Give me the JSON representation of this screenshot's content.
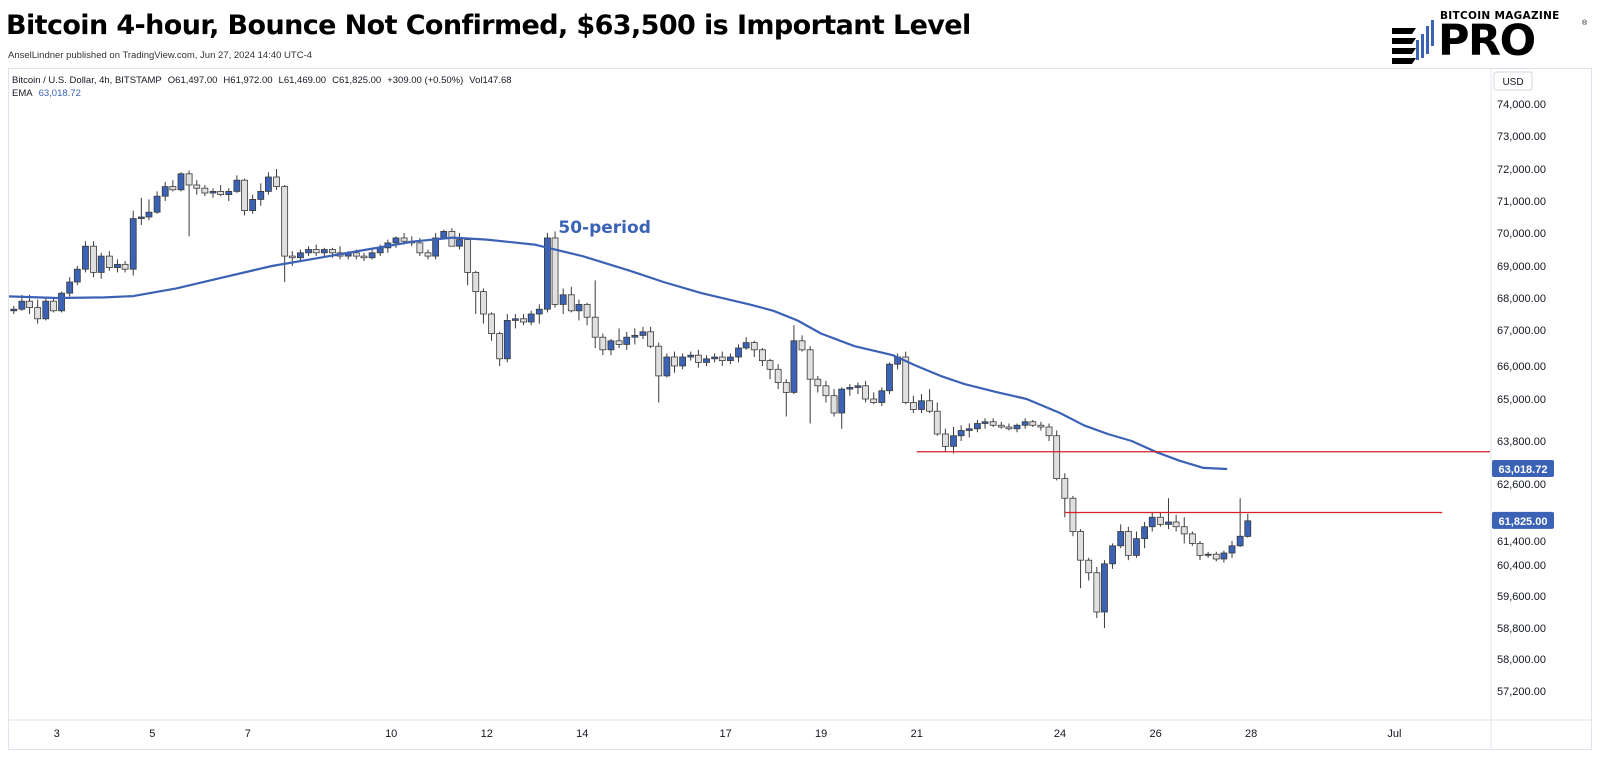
{
  "header": {
    "title": "Bitcoin 4-hour, Bounce Not Confirmed, $63,500 is Important Level",
    "byline": "AnselLindner published on TradingView.com, Jun 27, 2024 14:40 UTC-4"
  },
  "logo": {
    "kicker": "BITCOIN MAGAZINE",
    "word": "PRO",
    "reg": "®"
  },
  "legend": {
    "symbol": "Bitcoin / U.S. Dollar, 4h, BITSTAMP",
    "open": "O61,497.00",
    "high": "H61,972.00",
    "low": "L61,469.00",
    "close": "C61,825.00",
    "change": "+309.00 (+0.50%)",
    "volume": "Vol147.68",
    "ema_label": "EMA",
    "ema_value": "63,018.72"
  },
  "chart_data": {
    "type": "candlestick",
    "title": "Bitcoin 4-hour, Bounce Not Confirmed, $63,500 is Important Level",
    "currency": "USD",
    "ylim": [
      56600,
      74900
    ],
    "y_scale": "nonlinear",
    "y_tick_labels": [
      "74,000.00",
      "73,000.00",
      "72,000.00",
      "71,000.00",
      "70,000.00",
      "69,000.00",
      "68,000.00",
      "67,000.00",
      "66,000.00",
      "65,000.00",
      "63,800.00",
      "62,600.00",
      "61,400.00",
      "60,400.00",
      "59,600.00",
      "58,800.00",
      "58,000.00",
      "57,200.00"
    ],
    "y_tick_values": [
      74000,
      73000,
      72000,
      71000,
      70000,
      69000,
      68000,
      67000,
      66000,
      65000,
      63800,
      62600,
      61400,
      60400,
      59600,
      58800,
      58000,
      57200
    ],
    "x_tick_labels": [
      "3",
      "5",
      "7",
      "10",
      "12",
      "14",
      "17",
      "19",
      "21",
      "24",
      "26",
      "28",
      "Jul"
    ],
    "x_tick_days": [
      3,
      5,
      7,
      10,
      12,
      14,
      17,
      19,
      21,
      24,
      26,
      28,
      31
    ],
    "x_range_days": [
      2.0,
      33.0
    ],
    "candle_colors": {
      "up": "#3b62b5",
      "down": "#e0e0e0",
      "outline": "#3a3a3a"
    },
    "candles": [
      [
        2.1,
        67600,
        67750,
        67500,
        67650
      ],
      [
        2.27,
        67650,
        68100,
        67600,
        67900
      ],
      [
        2.43,
        67900,
        68100,
        67500,
        67700
      ],
      [
        2.6,
        67700,
        67950,
        67200,
        67350
      ],
      [
        2.77,
        67350,
        68000,
        67300,
        67900
      ],
      [
        2.93,
        67900,
        68000,
        67550,
        67600
      ],
      [
        3.1,
        67600,
        68200,
        67550,
        68150
      ],
      [
        3.27,
        68150,
        68650,
        68050,
        68500
      ],
      [
        3.43,
        68500,
        69000,
        68400,
        68900
      ],
      [
        3.6,
        68900,
        69750,
        68800,
        69600
      ],
      [
        3.77,
        69600,
        69750,
        68650,
        68800
      ],
      [
        3.93,
        68800,
        69400,
        68600,
        69300
      ],
      [
        4.1,
        69300,
        69450,
        68850,
        68950
      ],
      [
        4.27,
        68950,
        69200,
        68800,
        69050
      ],
      [
        4.43,
        69050,
        69150,
        68800,
        68900
      ],
      [
        4.6,
        68900,
        70700,
        68700,
        70450
      ],
      [
        4.77,
        70450,
        71100,
        70250,
        70500
      ],
      [
        4.93,
        70500,
        71050,
        70400,
        70650
      ],
      [
        5.1,
        70650,
        71300,
        70600,
        71150
      ],
      [
        5.27,
        71150,
        71600,
        71000,
        71450
      ],
      [
        5.43,
        71450,
        71650,
        71300,
        71350
      ],
      [
        5.6,
        71350,
        71900,
        71300,
        71850
      ],
      [
        5.77,
        71850,
        71950,
        69900,
        71500
      ],
      [
        5.93,
        71500,
        71650,
        71200,
        71400
      ],
      [
        6.1,
        71400,
        71500,
        71150,
        71250
      ],
      [
        6.27,
        71250,
        71400,
        71100,
        71300
      ],
      [
        6.43,
        71300,
        71500,
        71150,
        71200
      ],
      [
        6.6,
        71200,
        71400,
        71000,
        71300
      ],
      [
        6.77,
        71300,
        71800,
        71250,
        71650
      ],
      [
        6.93,
        71650,
        71700,
        70550,
        70700
      ],
      [
        7.1,
        70700,
        71200,
        70600,
        71050
      ],
      [
        7.27,
        71050,
        71550,
        70850,
        71300
      ],
      [
        7.43,
        71300,
        71900,
        71200,
        71750
      ],
      [
        7.6,
        71750,
        72000,
        71350,
        71450
      ],
      [
        7.77,
        71450,
        71500,
        68500,
        69300
      ],
      [
        7.93,
        69300,
        69450,
        69000,
        69250
      ],
      [
        8.1,
        69250,
        69500,
        69150,
        69400
      ],
      [
        8.27,
        69400,
        69600,
        69300,
        69500
      ],
      [
        8.43,
        69500,
        69650,
        69300,
        69400
      ],
      [
        8.6,
        69400,
        69550,
        69250,
        69500
      ],
      [
        8.77,
        69500,
        69550,
        69250,
        69400
      ],
      [
        8.93,
        69400,
        69600,
        69200,
        69300
      ],
      [
        9.1,
        69300,
        69450,
        69200,
        69400
      ],
      [
        9.27,
        69400,
        69500,
        69200,
        69300
      ],
      [
        9.43,
        69300,
        69400,
        69150,
        69250
      ],
      [
        9.6,
        69250,
        69500,
        69200,
        69400
      ],
      [
        9.77,
        69400,
        69650,
        69300,
        69550
      ],
      [
        9.93,
        69550,
        69800,
        69400,
        69700
      ],
      [
        10.1,
        69700,
        69900,
        69550,
        69850
      ],
      [
        10.27,
        69850,
        70000,
        69650,
        69750
      ],
      [
        10.43,
        69750,
        69900,
        69600,
        69700
      ],
      [
        10.6,
        69700,
        69850,
        69300,
        69400
      ],
      [
        10.77,
        69400,
        69500,
        69200,
        69300
      ],
      [
        10.93,
        69300,
        70000,
        69200,
        69850
      ],
      [
        11.1,
        69850,
        70100,
        69900,
        70050
      ],
      [
        11.27,
        70050,
        70150,
        69600,
        69600
      ],
      [
        11.43,
        69600,
        70000,
        69500,
        69800
      ],
      [
        11.6,
        69800,
        69850,
        68400,
        68800
      ],
      [
        11.77,
        68800,
        68850,
        67500,
        68200
      ],
      [
        11.93,
        68200,
        68300,
        67200,
        67500
      ],
      [
        12.1,
        67500,
        67550,
        66700,
        66900
      ],
      [
        12.27,
        66900,
        66950,
        66000,
        66200
      ],
      [
        12.43,
        66200,
        67500,
        66100,
        67300
      ],
      [
        12.6,
        67300,
        67500,
        67050,
        67350
      ],
      [
        12.77,
        67350,
        67500,
        67150,
        67250
      ],
      [
        12.93,
        67250,
        67600,
        67150,
        67500
      ],
      [
        13.1,
        67500,
        67800,
        67200,
        67650
      ],
      [
        13.27,
        67650,
        70000,
        67550,
        69850
      ],
      [
        13.43,
        69850,
        70050,
        67700,
        67800
      ],
      [
        13.6,
        67800,
        68300,
        67500,
        68100
      ],
      [
        13.77,
        68100,
        68350,
        67550,
        67600
      ],
      [
        13.93,
        67600,
        67950,
        67300,
        67800
      ],
      [
        14.1,
        67800,
        67850,
        67150,
        67400
      ],
      [
        14.27,
        67400,
        68550,
        66500,
        66800
      ],
      [
        14.43,
        66800,
        66900,
        66300,
        66450
      ],
      [
        14.6,
        66450,
        66750,
        66300,
        66700
      ],
      [
        14.77,
        66700,
        67050,
        66500,
        66600
      ],
      [
        14.93,
        66600,
        66950,
        66450,
        66800
      ],
      [
        15.1,
        66800,
        67050,
        66600,
        66850
      ],
      [
        15.27,
        66850,
        67100,
        66750,
        66950
      ],
      [
        15.43,
        66950,
        67100,
        66500,
        66550
      ],
      [
        15.6,
        66550,
        66650,
        64900,
        65700
      ],
      [
        15.77,
        65700,
        66350,
        65650,
        66250
      ],
      [
        15.93,
        66250,
        66400,
        65800,
        66000
      ],
      [
        16.1,
        66000,
        66350,
        65900,
        66250
      ],
      [
        16.27,
        66250,
        66400,
        66150,
        66300
      ],
      [
        16.43,
        66300,
        66450,
        65950,
        66100
      ],
      [
        16.6,
        66100,
        66300,
        66000,
        66200
      ],
      [
        16.77,
        66200,
        66350,
        66100,
        66250
      ],
      [
        16.93,
        66250,
        66400,
        66000,
        66150
      ],
      [
        17.1,
        66150,
        66350,
        66050,
        66250
      ],
      [
        17.27,
        66250,
        66600,
        66100,
        66500
      ],
      [
        17.43,
        66500,
        66800,
        66450,
        66650
      ],
      [
        17.6,
        66650,
        66700,
        66250,
        66450
      ],
      [
        17.77,
        66450,
        66500,
        66000,
        66150
      ],
      [
        17.93,
        66150,
        66200,
        65600,
        65900
      ],
      [
        18.1,
        65900,
        66050,
        65300,
        65500
      ],
      [
        18.27,
        65500,
        65600,
        64500,
        65200
      ],
      [
        18.43,
        65200,
        67150,
        65150,
        66700
      ],
      [
        18.6,
        66700,
        66850,
        66400,
        66450
      ],
      [
        18.77,
        66450,
        66550,
        64300,
        65600
      ],
      [
        18.93,
        65600,
        65700,
        65200,
        65400
      ],
      [
        19.1,
        65400,
        65550,
        64900,
        65100
      ],
      [
        19.27,
        65100,
        65300,
        64500,
        64600
      ],
      [
        19.43,
        64600,
        65350,
        64150,
        65300
      ],
      [
        19.6,
        65300,
        65450,
        65100,
        65350
      ],
      [
        19.77,
        65350,
        65500,
        65150,
        65400
      ],
      [
        19.93,
        65400,
        65550,
        64900,
        65000
      ],
      [
        20.1,
        65000,
        65200,
        64850,
        64900
      ],
      [
        20.27,
        64900,
        65350,
        64800,
        65250
      ],
      [
        20.43,
        65250,
        66100,
        65150,
        66050
      ],
      [
        20.6,
        66050,
        66350,
        65900,
        66250
      ],
      [
        20.77,
        66250,
        66400,
        64850,
        64900
      ],
      [
        20.93,
        64900,
        65100,
        64600,
        64700
      ],
      [
        21.1,
        64700,
        65150,
        64600,
        64950
      ],
      [
        21.27,
        64950,
        65300,
        64600,
        64650
      ],
      [
        21.43,
        64650,
        64900,
        63950,
        64000
      ],
      [
        21.6,
        64000,
        64150,
        63500,
        63650
      ],
      [
        21.77,
        63650,
        64200,
        63450,
        63950
      ],
      [
        21.93,
        63950,
        64250,
        63800,
        64100
      ],
      [
        22.1,
        64100,
        64300,
        63900,
        64150
      ],
      [
        22.27,
        64150,
        64400,
        64050,
        64300
      ],
      [
        22.43,
        64300,
        64450,
        64150,
        64350
      ],
      [
        22.6,
        64350,
        64450,
        64200,
        64250
      ],
      [
        22.77,
        64250,
        64350,
        64150,
        64200
      ],
      [
        22.93,
        64200,
        64300,
        64100,
        64150
      ],
      [
        23.1,
        64150,
        64300,
        64050,
        64250
      ],
      [
        23.27,
        64250,
        64450,
        64150,
        64350
      ],
      [
        23.43,
        64350,
        64400,
        64200,
        64250
      ],
      [
        23.6,
        64250,
        64350,
        64100,
        64200
      ],
      [
        23.77,
        64200,
        64300,
        63800,
        63950
      ],
      [
        23.93,
        63950,
        64100,
        62700,
        62750
      ],
      [
        24.1,
        62750,
        62900,
        61900,
        62300
      ],
      [
        24.27,
        62300,
        62350,
        61500,
        61600
      ],
      [
        24.43,
        61600,
        61650,
        59800,
        60600
      ],
      [
        24.6,
        60600,
        60700,
        60000,
        60200
      ],
      [
        24.77,
        60200,
        60350,
        59050,
        59200
      ],
      [
        24.93,
        59200,
        60600,
        58800,
        60450
      ],
      [
        25.1,
        60450,
        61300,
        60300,
        61200
      ],
      [
        25.27,
        61200,
        61750,
        61100,
        61600
      ],
      [
        25.43,
        61600,
        61700,
        60600,
        60800
      ],
      [
        25.6,
        60800,
        61600,
        60700,
        61450
      ],
      [
        25.77,
        61450,
        61800,
        61100,
        61700
      ],
      [
        25.93,
        61700,
        62000,
        61600,
        61900
      ],
      [
        26.1,
        61900,
        62000,
        61700,
        61750
      ],
      [
        26.27,
        61750,
        62300,
        61650,
        61800
      ],
      [
        26.43,
        61800,
        61950,
        61600,
        61700
      ],
      [
        26.6,
        61700,
        61900,
        61300,
        61550
      ],
      [
        26.77,
        61550,
        61600,
        61200,
        61300
      ],
      [
        26.93,
        61300,
        61400,
        60600,
        60800
      ],
      [
        27.1,
        60800,
        60950,
        60700,
        60850
      ],
      [
        27.27,
        60850,
        60950,
        60550,
        60650
      ],
      [
        27.43,
        60650,
        61000,
        60500,
        60900
      ],
      [
        27.6,
        60900,
        61400,
        60700,
        61200
      ],
      [
        27.77,
        61200,
        62300,
        61150,
        61500
      ],
      [
        27.93,
        61497,
        61972,
        61469,
        61825
      ]
    ],
    "ema": {
      "label": "50-period",
      "current_value": 63018.72,
      "color": "#3b62b5",
      "points": [
        [
          2.0,
          68050
        ],
        [
          3.0,
          68000
        ],
        [
          4.0,
          68020
        ],
        [
          4.6,
          68060
        ],
        [
          5.5,
          68300
        ],
        [
          6.5,
          68650
        ],
        [
          7.5,
          69000
        ],
        [
          8.5,
          69250
        ],
        [
          9.5,
          69500
        ],
        [
          10.5,
          69750
        ],
        [
          11.3,
          69860
        ],
        [
          12.0,
          69800
        ],
        [
          13.0,
          69650
        ],
        [
          14.0,
          69300
        ],
        [
          15.0,
          68850
        ],
        [
          15.7,
          68500
        ],
        [
          16.5,
          68150
        ],
        [
          17.5,
          67800
        ],
        [
          18.0,
          67600
        ],
        [
          18.5,
          67300
        ],
        [
          19.0,
          66900
        ],
        [
          19.7,
          66550
        ],
        [
          20.5,
          66300
        ],
        [
          21.0,
          66000
        ],
        [
          21.5,
          65700
        ],
        [
          22.0,
          65450
        ],
        [
          22.7,
          65200
        ],
        [
          23.3,
          65000
        ],
        [
          24.0,
          64600
        ],
        [
          24.5,
          64250
        ],
        [
          25.0,
          64000
        ],
        [
          25.5,
          63800
        ],
        [
          26.0,
          63500
        ],
        [
          26.5,
          63250
        ],
        [
          27.0,
          63050
        ],
        [
          27.5,
          63018.72
        ]
      ]
    },
    "horizontal_levels": [
      {
        "value": 63500,
        "x_start": 21.0,
        "x_end": 33.0,
        "color": "#d81f26"
      },
      {
        "value": 62000,
        "x_start": 24.1,
        "x_end": 32.0,
        "color": "#d81f26"
      }
    ],
    "price_tags": [
      {
        "label": "63,018.72",
        "value": 63018.72,
        "color": "#3b62b5"
      },
      {
        "label": "61,825.00",
        "value": 61825,
        "color": "#3b62b5"
      }
    ],
    "annotation": {
      "text": "50-period",
      "x": 13.5,
      "y": 70000,
      "color": "#3b62b5"
    }
  }
}
